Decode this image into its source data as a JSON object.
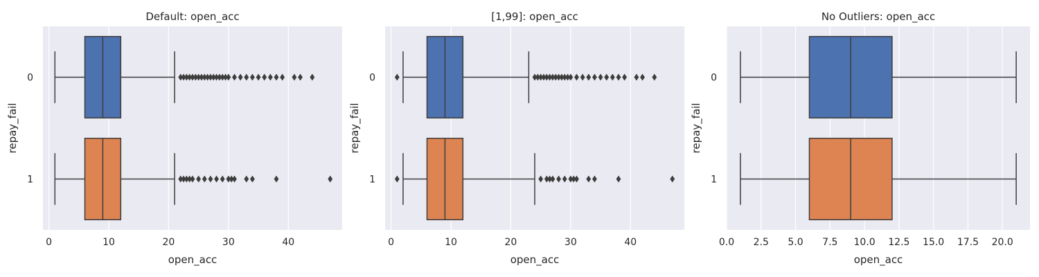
{
  "chart_data": [
    {
      "type": "box",
      "orientation": "horizontal",
      "title": "Default: open_acc",
      "xlabel": "open_acc",
      "ylabel": "repay_fail",
      "xlim": [
        -1,
        49
      ],
      "xticks": [
        0,
        10,
        20,
        30,
        40
      ],
      "xtick_labels": [
        "0",
        "10",
        "20",
        "30",
        "40"
      ],
      "grid": true,
      "categories": [
        "0",
        "1"
      ],
      "boxes": [
        {
          "category": "0",
          "color": "#4c72b0",
          "whisker_low": 1,
          "q1": 6,
          "median": 9,
          "q3": 12,
          "whisker_high": 21,
          "outliers": [
            22,
            22.5,
            23,
            23.5,
            24,
            24.5,
            25,
            25.5,
            26,
            26.5,
            27,
            27.5,
            28,
            28.5,
            29,
            29.5,
            30,
            31,
            32,
            33,
            34,
            35,
            36,
            37,
            38,
            39,
            41,
            42,
            44
          ]
        },
        {
          "category": "1",
          "color": "#dd8452",
          "whisker_low": 1,
          "q1": 6,
          "median": 9,
          "q3": 12,
          "whisker_high": 21,
          "outliers": [
            22,
            22.5,
            23,
            23.5,
            24,
            25,
            26,
            27,
            28,
            29,
            30,
            30.5,
            31,
            33,
            34,
            38,
            47
          ]
        }
      ]
    },
    {
      "type": "box",
      "orientation": "horizontal",
      "title": "[1,99]: open_acc",
      "xlabel": "open_acc",
      "ylabel": "repay_fail",
      "xlim": [
        -1,
        49
      ],
      "xticks": [
        0,
        10,
        20,
        30,
        40
      ],
      "xtick_labels": [
        "0",
        "10",
        "20",
        "30",
        "40"
      ],
      "grid": true,
      "categories": [
        "0",
        "1"
      ],
      "boxes": [
        {
          "category": "0",
          "color": "#4c72b0",
          "whisker_low": 2,
          "q1": 6,
          "median": 9,
          "q3": 12,
          "whisker_high": 23,
          "outliers": [
            1,
            24,
            24.5,
            25,
            25.5,
            26,
            26.5,
            27,
            27.5,
            28,
            28.5,
            29,
            29.5,
            30,
            31,
            32,
            33,
            34,
            35,
            36,
            37,
            38,
            39,
            41,
            42,
            44
          ]
        },
        {
          "category": "1",
          "color": "#dd8452",
          "whisker_low": 2,
          "q1": 6,
          "median": 9,
          "q3": 12,
          "whisker_high": 24,
          "outliers": [
            1,
            25,
            26,
            26.5,
            27,
            28,
            29,
            30,
            30.5,
            31,
            33,
            34,
            38,
            47
          ]
        }
      ]
    },
    {
      "type": "box",
      "orientation": "horizontal",
      "title": "No Outliers: open_acc",
      "xlabel": "open_acc",
      "ylabel": "repay_fail",
      "xlim": [
        0,
        22
      ],
      "xticks": [
        0,
        2.5,
        5,
        7.5,
        10,
        12.5,
        15,
        17.5,
        20
      ],
      "xtick_labels": [
        "0.0",
        "2.5",
        "5.0",
        "7.5",
        "10.0",
        "12.5",
        "15.0",
        "17.5",
        "20.0"
      ],
      "grid": true,
      "categories": [
        "0",
        "1"
      ],
      "boxes": [
        {
          "category": "0",
          "color": "#4c72b0",
          "whisker_low": 1,
          "q1": 6,
          "median": 9,
          "q3": 12,
          "whisker_high": 21,
          "outliers": []
        },
        {
          "category": "1",
          "color": "#dd8452",
          "whisker_low": 1,
          "q1": 6,
          "median": 9,
          "q3": 12,
          "whisker_high": 21,
          "outliers": []
        }
      ]
    }
  ]
}
